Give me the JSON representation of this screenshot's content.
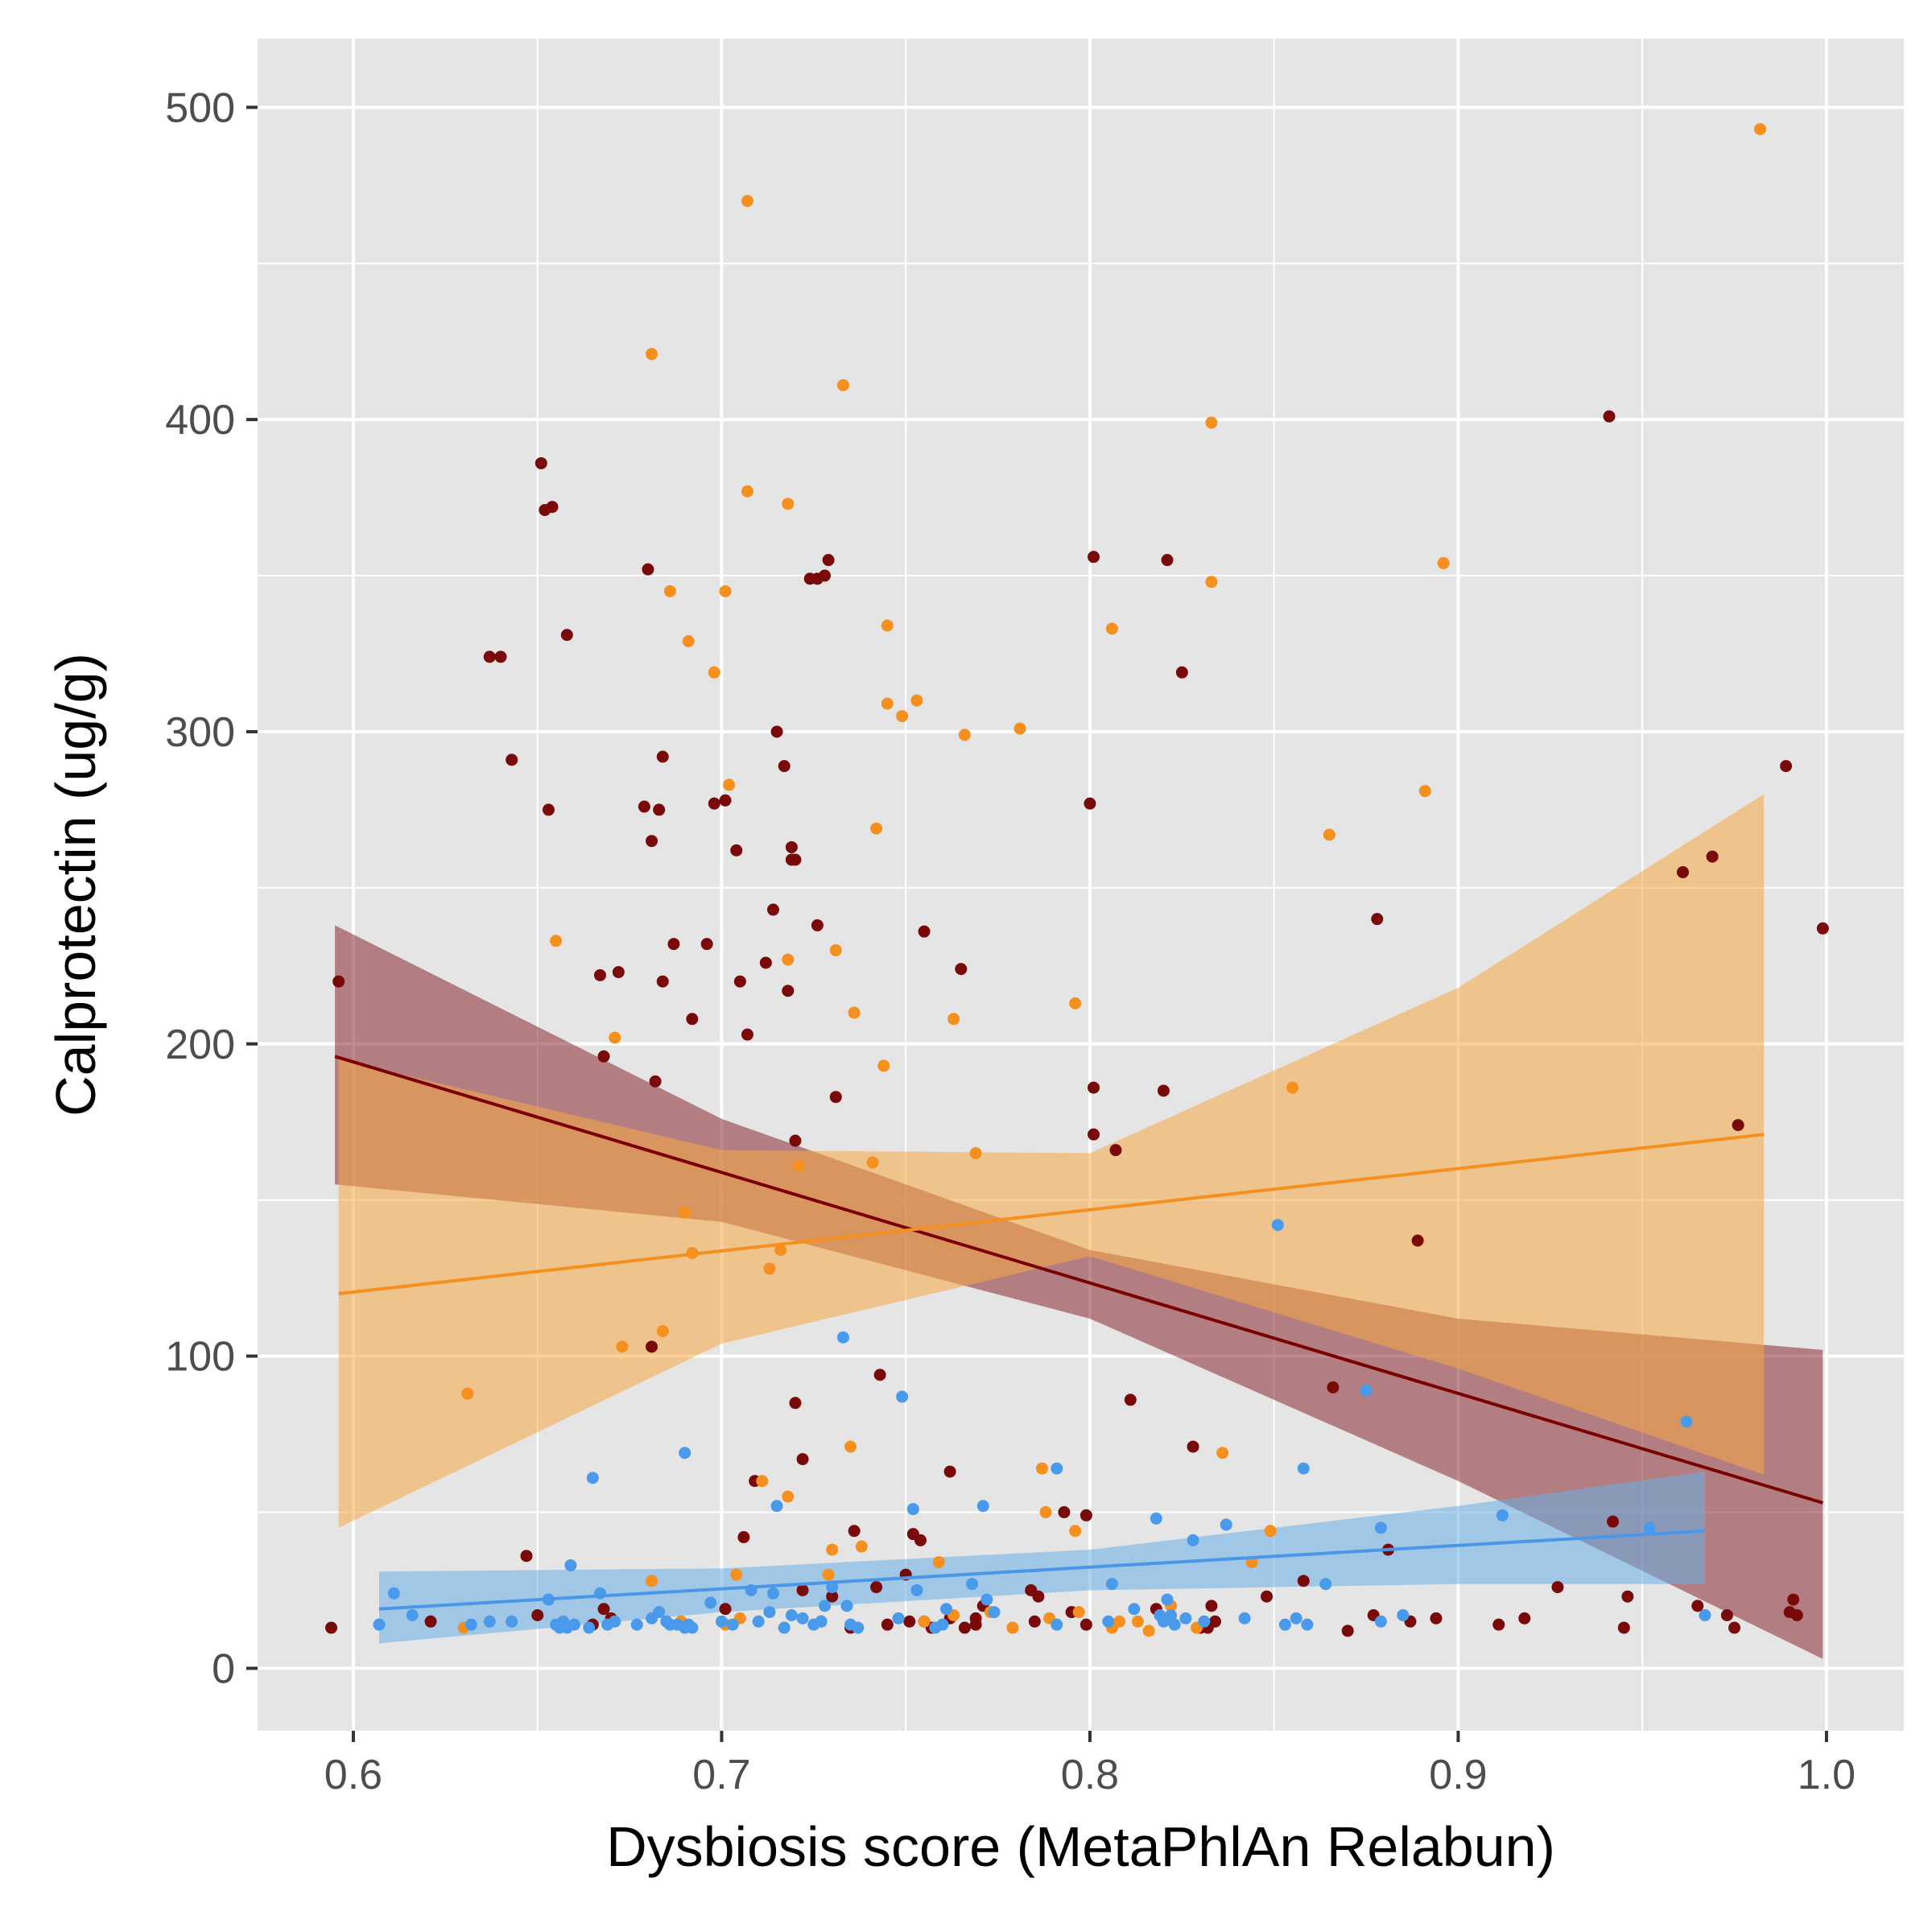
{
  "chart_data": {
    "type": "scatter",
    "title": "",
    "xlabel": "Dysbiosis score (MetaPhlAn Relabun)",
    "ylabel": "Calprotectin (ug/g)",
    "xlim": [
      0.574,
      1.021
    ],
    "ylim": [
      -20,
      522
    ],
    "x_ticks": [
      0.6,
      0.7,
      0.8,
      0.9,
      1.0
    ],
    "x_tick_labels": [
      "0.6",
      "0.7",
      "0.8",
      "0.9",
      "1.0"
    ],
    "y_ticks": [
      0,
      100,
      200,
      300,
      400,
      500
    ],
    "y_tick_labels": [
      "0",
      "100",
      "200",
      "300",
      "400",
      "500"
    ],
    "grid": true,
    "legend": "none",
    "colors": {
      "panel": "#e5e5e5",
      "grid": "#ffffff",
      "series_1": "#7a0a0a",
      "series_2": "#f5901e",
      "series_3": "#4a9aec",
      "series_1_band": "#8b2a32",
      "series_2_band": "#f7a843",
      "series_3_band": "#6aaee8",
      "series_1_line": "#7a0000",
      "series_2_line": "#f5901e",
      "series_3_line": "#4a96e8"
    },
    "series": [
      {
        "color_key": "series_1",
        "points": [
          [
            0.594,
            13
          ],
          [
            0.596,
            220
          ],
          [
            0.621,
            15
          ],
          [
            0.637,
            324
          ],
          [
            0.64,
            324
          ],
          [
            0.643,
            291
          ],
          [
            0.647,
            36
          ],
          [
            0.65,
            17
          ],
          [
            0.651,
            386
          ],
          [
            0.652,
            371
          ],
          [
            0.653,
            275
          ],
          [
            0.654,
            372
          ],
          [
            0.658,
            331
          ],
          [
            0.665,
            14
          ],
          [
            0.667,
            222
          ],
          [
            0.668,
            19
          ],
          [
            0.668,
            196
          ],
          [
            0.67,
            16
          ],
          [
            0.672,
            223
          ],
          [
            0.679,
            276
          ],
          [
            0.68,
            352
          ],
          [
            0.681,
            265
          ],
          [
            0.681,
            103
          ],
          [
            0.682,
            188
          ],
          [
            0.683,
            275
          ],
          [
            0.684,
            292
          ],
          [
            0.684,
            220
          ],
          [
            0.687,
            232
          ],
          [
            0.692,
            208
          ],
          [
            0.696,
            232
          ],
          [
            0.698,
            277
          ],
          [
            0.701,
            278
          ],
          [
            0.701,
            19
          ],
          [
            0.704,
            262
          ],
          [
            0.705,
            220
          ],
          [
            0.706,
            42
          ],
          [
            0.707,
            203
          ],
          [
            0.709,
            60
          ],
          [
            0.712,
            226
          ],
          [
            0.714,
            243
          ],
          [
            0.715,
            300
          ],
          [
            0.717,
            289
          ],
          [
            0.718,
            217
          ],
          [
            0.719,
            259
          ],
          [
            0.719,
            263
          ],
          [
            0.72,
            259
          ],
          [
            0.72,
            85
          ],
          [
            0.72,
            169
          ],
          [
            0.722,
            25
          ],
          [
            0.722,
            67
          ],
          [
            0.724,
            349
          ],
          [
            0.726,
            349
          ],
          [
            0.726,
            238
          ],
          [
            0.727,
            15
          ],
          [
            0.728,
            350
          ],
          [
            0.729,
            355
          ],
          [
            0.73,
            23
          ],
          [
            0.731,
            183
          ],
          [
            0.735,
            13
          ],
          [
            0.736,
            44
          ],
          [
            0.742,
            26
          ],
          [
            0.743,
            94
          ],
          [
            0.745,
            14
          ],
          [
            0.75,
            30
          ],
          [
            0.751,
            15
          ],
          [
            0.752,
            43
          ],
          [
            0.754,
            41
          ],
          [
            0.755,
            236
          ],
          [
            0.755,
            15
          ],
          [
            0.757,
            13
          ],
          [
            0.762,
            16
          ],
          [
            0.762,
            63
          ],
          [
            0.765,
            224
          ],
          [
            0.766,
            13
          ],
          [
            0.769,
            14
          ],
          [
            0.769,
            16
          ],
          [
            0.771,
            20
          ],
          [
            0.784,
            25
          ],
          [
            0.785,
            15
          ],
          [
            0.786,
            23
          ],
          [
            0.793,
            50
          ],
          [
            0.795,
            18
          ],
          [
            0.799,
            49
          ],
          [
            0.799,
            14
          ],
          [
            0.8,
            277
          ],
          [
            0.801,
            186
          ],
          [
            0.801,
            356
          ],
          [
            0.801,
            171
          ],
          [
            0.807,
            166
          ],
          [
            0.811,
            86
          ],
          [
            0.818,
            19
          ],
          [
            0.82,
            185
          ],
          [
            0.821,
            355
          ],
          [
            0.825,
            319
          ],
          [
            0.828,
            71
          ],
          [
            0.83,
            13
          ],
          [
            0.832,
            13
          ],
          [
            0.833,
            20
          ],
          [
            0.834,
            15
          ],
          [
            0.848,
            23
          ],
          [
            0.858,
            28
          ],
          [
            0.866,
            90
          ],
          [
            0.87,
            12
          ],
          [
            0.877,
            17
          ],
          [
            0.878,
            240
          ],
          [
            0.881,
            38
          ],
          [
            0.887,
            15
          ],
          [
            0.889,
            137
          ],
          [
            0.894,
            16
          ],
          [
            0.911,
            14
          ],
          [
            0.918,
            16
          ],
          [
            0.927,
            26
          ],
          [
            0.941,
            401
          ],
          [
            0.942,
            47
          ],
          [
            0.945,
            13
          ],
          [
            0.946,
            23
          ],
          [
            0.961,
            255
          ],
          [
            0.965,
            20
          ],
          [
            0.969,
            260
          ],
          [
            0.973,
            17
          ],
          [
            0.975,
            13
          ],
          [
            0.976,
            174
          ],
          [
            0.989,
            289
          ],
          [
            0.99,
            18
          ],
          [
            0.991,
            22
          ],
          [
            0.992,
            17
          ],
          [
            0.999,
            237
          ]
        ]
      },
      {
        "color_key": "series_2",
        "points": [
          [
            0.63,
            13
          ],
          [
            0.631,
            88
          ],
          [
            0.655,
            233
          ],
          [
            0.671,
            202
          ],
          [
            0.673,
            103
          ],
          [
            0.681,
            28
          ],
          [
            0.681,
            421
          ],
          [
            0.684,
            108
          ],
          [
            0.686,
            345
          ],
          [
            0.689,
            15
          ],
          [
            0.69,
            146
          ],
          [
            0.691,
            329
          ],
          [
            0.692,
            133
          ],
          [
            0.698,
            319
          ],
          [
            0.701,
            14
          ],
          [
            0.701,
            345
          ],
          [
            0.702,
            283
          ],
          [
            0.704,
            30
          ],
          [
            0.705,
            16
          ],
          [
            0.707,
            377
          ],
          [
            0.707,
            470
          ],
          [
            0.711,
            60
          ],
          [
            0.713,
            128
          ],
          [
            0.716,
            134
          ],
          [
            0.718,
            227
          ],
          [
            0.718,
            373
          ],
          [
            0.718,
            55
          ],
          [
            0.721,
            161
          ],
          [
            0.729,
            30
          ],
          [
            0.73,
            38
          ],
          [
            0.731,
            230
          ],
          [
            0.733,
            411
          ],
          [
            0.735,
            71
          ],
          [
            0.736,
            210
          ],
          [
            0.738,
            39
          ],
          [
            0.741,
            162
          ],
          [
            0.742,
            269
          ],
          [
            0.744,
            193
          ],
          [
            0.745,
            309
          ],
          [
            0.745,
            334
          ],
          [
            0.749,
            305
          ],
          [
            0.753,
            310
          ],
          [
            0.755,
            15
          ],
          [
            0.759,
            34
          ],
          [
            0.763,
            17
          ],
          [
            0.763,
            208
          ],
          [
            0.766,
            299
          ],
          [
            0.769,
            165
          ],
          [
            0.773,
            18
          ],
          [
            0.779,
            13
          ],
          [
            0.781,
            301
          ],
          [
            0.787,
            64
          ],
          [
            0.788,
            50
          ],
          [
            0.789,
            16
          ],
          [
            0.796,
            213
          ],
          [
            0.796,
            44
          ],
          [
            0.797,
            18
          ],
          [
            0.806,
            333
          ],
          [
            0.806,
            13
          ],
          [
            0.808,
            15
          ],
          [
            0.813,
            15
          ],
          [
            0.816,
            12
          ],
          [
            0.822,
            20
          ],
          [
            0.829,
            13
          ],
          [
            0.833,
            399
          ],
          [
            0.833,
            348
          ],
          [
            0.836,
            69
          ],
          [
            0.844,
            34
          ],
          [
            0.849,
            44
          ],
          [
            0.855,
            186
          ],
          [
            0.865,
            267
          ],
          [
            0.891,
            281
          ],
          [
            0.896,
            354
          ],
          [
            0.982,
            493
          ]
        ]
      },
      {
        "color_key": "series_3",
        "points": [
          [
            0.607,
            14
          ],
          [
            0.611,
            24
          ],
          [
            0.616,
            17
          ],
          [
            0.632,
            14
          ],
          [
            0.637,
            15
          ],
          [
            0.643,
            15
          ],
          [
            0.653,
            22
          ],
          [
            0.655,
            14
          ],
          [
            0.656,
            13
          ],
          [
            0.657,
            15
          ],
          [
            0.658,
            13
          ],
          [
            0.659,
            33
          ],
          [
            0.66,
            14
          ],
          [
            0.664,
            13
          ],
          [
            0.665,
            61
          ],
          [
            0.667,
            24
          ],
          [
            0.669,
            14
          ],
          [
            0.671,
            15
          ],
          [
            0.677,
            14
          ],
          [
            0.681,
            16
          ],
          [
            0.683,
            18
          ],
          [
            0.685,
            15
          ],
          [
            0.686,
            14
          ],
          [
            0.688,
            14
          ],
          [
            0.69,
            13
          ],
          [
            0.69,
            69
          ],
          [
            0.691,
            14
          ],
          [
            0.692,
            13
          ],
          [
            0.697,
            21
          ],
          [
            0.7,
            15
          ],
          [
            0.703,
            14
          ],
          [
            0.708,
            25
          ],
          [
            0.71,
            15
          ],
          [
            0.713,
            18
          ],
          [
            0.714,
            24
          ],
          [
            0.715,
            52
          ],
          [
            0.717,
            13
          ],
          [
            0.719,
            17
          ],
          [
            0.722,
            16
          ],
          [
            0.725,
            14
          ],
          [
            0.727,
            15
          ],
          [
            0.728,
            20
          ],
          [
            0.73,
            26
          ],
          [
            0.733,
            106
          ],
          [
            0.734,
            20
          ],
          [
            0.735,
            14
          ],
          [
            0.737,
            13
          ],
          [
            0.748,
            16
          ],
          [
            0.749,
            87
          ],
          [
            0.752,
            51
          ],
          [
            0.753,
            25
          ],
          [
            0.758,
            13
          ],
          [
            0.76,
            14
          ],
          [
            0.761,
            19
          ],
          [
            0.768,
            27
          ],
          [
            0.771,
            52
          ],
          [
            0.772,
            22
          ],
          [
            0.774,
            18
          ],
          [
            0.791,
            64
          ],
          [
            0.791,
            14
          ],
          [
            0.805,
            15
          ],
          [
            0.806,
            27
          ],
          [
            0.812,
            19
          ],
          [
            0.818,
            48
          ],
          [
            0.819,
            17
          ],
          [
            0.82,
            15
          ],
          [
            0.821,
            22
          ],
          [
            0.822,
            17
          ],
          [
            0.823,
            14
          ],
          [
            0.826,
            16
          ],
          [
            0.828,
            41
          ],
          [
            0.831,
            15
          ],
          [
            0.837,
            46
          ],
          [
            0.842,
            16
          ],
          [
            0.851,
            142
          ],
          [
            0.853,
            14
          ],
          [
            0.856,
            16
          ],
          [
            0.858,
            64
          ],
          [
            0.859,
            14
          ],
          [
            0.864,
            27
          ],
          [
            0.875,
            89
          ],
          [
            0.879,
            15
          ],
          [
            0.879,
            45
          ],
          [
            0.885,
            17
          ],
          [
            0.912,
            49
          ],
          [
            0.952,
            45
          ],
          [
            0.962,
            79
          ],
          [
            0.967,
            17
          ]
        ]
      }
    ],
    "fits": [
      {
        "color_key": "series_1",
        "x": [
          0.595,
          0.999
        ],
        "y": [
          196,
          53
        ],
        "band_x": [
          0.595,
          0.7,
          0.8,
          0.9,
          0.999
        ],
        "band_low": [
          155,
          143,
          112,
          60,
          3
        ],
        "band_high": [
          238,
          176,
          134,
          112,
          102
        ]
      },
      {
        "color_key": "series_2",
        "x": [
          0.596,
          0.983
        ],
        "y": [
          120,
          171
        ],
        "band_x": [
          0.596,
          0.7,
          0.8,
          0.9,
          0.983
        ],
        "band_low": [
          45,
          104,
          132,
          96,
          62
        ],
        "band_high": [
          195,
          166,
          165,
          218,
          280
        ]
      },
      {
        "color_key": "series_3",
        "x": [
          0.607,
          0.967
        ],
        "y": [
          19,
          44
        ],
        "band_x": [
          0.607,
          0.7,
          0.8,
          0.9,
          0.967
        ],
        "band_low": [
          8,
          18,
          25,
          27,
          27
        ],
        "band_high": [
          31,
          32,
          38,
          52,
          63
        ]
      }
    ]
  }
}
